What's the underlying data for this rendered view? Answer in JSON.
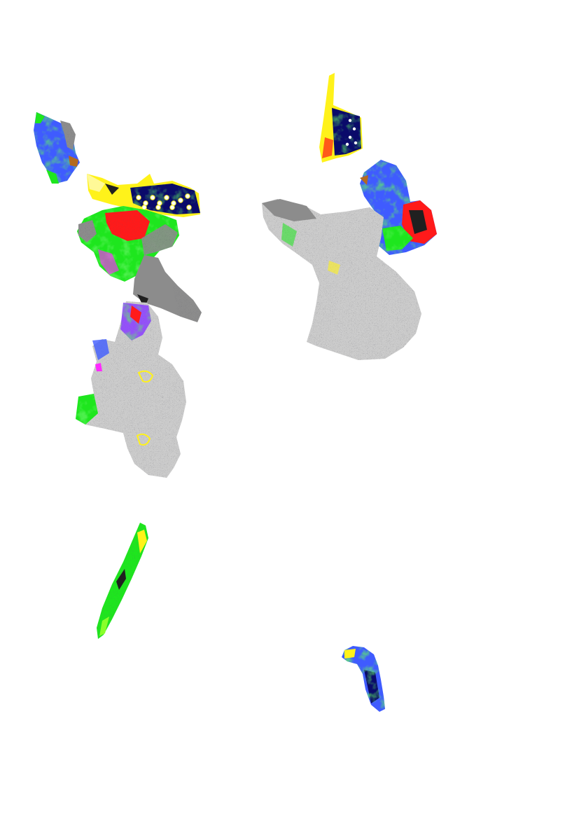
{
  "page": {
    "background": "#ffffff"
  },
  "palette": {
    "violet": "#8a3cff",
    "blue": "#3f5bff",
    "deep_blue": "#1a1aa8",
    "navy": "#0a0a6a",
    "green": "#1ee61e",
    "lime": "#8aff2a",
    "yellow": "#fff21a",
    "red": "#ff1a1a",
    "magenta": "#ff2aff",
    "cyan": "#2ad0ff",
    "grey": "#8c8c8c",
    "dark": "#202020",
    "white": "#ffffff"
  },
  "fragments": [
    {
      "name": "top-left-blue-fragment",
      "icon": "blue-specimen-fragment"
    },
    {
      "name": "yellow-navy-band-fragment",
      "icon": "dotted-band-fragment"
    },
    {
      "name": "red-green-mass-fragment",
      "icon": "colored-mass-fragment"
    },
    {
      "name": "grey-diagonal-fragment",
      "icon": "grey-fragment"
    },
    {
      "name": "speckled-grey-large-left-fragment",
      "icon": "speckled-fragment"
    },
    {
      "name": "top-center-yellow-strip-fragment",
      "icon": "yellow-strip-fragment"
    },
    {
      "name": "right-blue-red-fragment",
      "icon": "blue-red-fragment"
    },
    {
      "name": "speckled-grey-large-right-fragment",
      "icon": "speckled-fragment"
    },
    {
      "name": "long-green-diagonal-fragment",
      "icon": "green-strip-fragment"
    },
    {
      "name": "small-bottom-right-fragment",
      "icon": "small-curved-fragment"
    }
  ]
}
